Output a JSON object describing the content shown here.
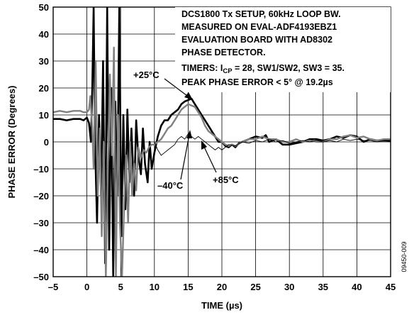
{
  "chart_data": {
    "type": "line",
    "xlabel": "TIME (µs)",
    "ylabel": "PHASE ERROR (Degrees)",
    "xlim": [
      -5,
      45
    ],
    "ylim": [
      -50,
      50
    ],
    "x_ticks": [
      -5,
      0,
      5,
      10,
      15,
      20,
      25,
      30,
      35,
      40,
      45
    ],
    "y_ticks": [
      50,
      40,
      30,
      20,
      10,
      0,
      -10,
      -20,
      -30,
      -40,
      -50
    ],
    "x_tick_labels": [
      "–5",
      "0",
      "5",
      "10",
      "15",
      "20",
      "25",
      "30",
      "35",
      "40",
      "45"
    ],
    "y_tick_labels": [
      "50",
      "40",
      "30",
      "20",
      "10",
      "0",
      "–10",
      "–20",
      "–30",
      "–40",
      "–50"
    ],
    "grid": true,
    "notes": {
      "line1": "DCS1800 Tx SETUP, 60kHz LOOP BW.",
      "line2": "MEASURED ON EVAL-ADF4193EBZ1",
      "line3": "EVALUATION BOARD WITH AD8302",
      "line4": "PHASE DETECTOR.",
      "line5_pre": "TIMERS: I",
      "line5_sub": "CP",
      "line5_post": " = 28, SW1/SW2, SW3 = 35.",
      "line6": "PEAK PHASE ERROR < 5° @ 19.2µs"
    },
    "annotations": {
      "plus25": "+25°C",
      "minus40": "–40°C",
      "plus85": "+85°C"
    },
    "figure_id": "09450-009",
    "series": [
      {
        "label": "+25°C",
        "color": "#000000",
        "width": 2.6,
        "points": [
          [
            -5,
            8.5
          ],
          [
            -4,
            8.5
          ],
          [
            -3,
            8
          ],
          [
            -2,
            8.5
          ],
          [
            -1,
            8.5
          ],
          [
            -0.5,
            8
          ],
          [
            0,
            9
          ],
          [
            0.3,
            7
          ],
          [
            0.6,
            0
          ],
          [
            0.8,
            20
          ],
          [
            1.0,
            50
          ],
          [
            1.2,
            0
          ],
          [
            1.5,
            -30
          ],
          [
            1.8,
            10
          ],
          [
            2.1,
            -20
          ],
          [
            2.4,
            30
          ],
          [
            2.7,
            -45
          ],
          [
            3.0,
            50
          ],
          [
            3.3,
            -40
          ],
          [
            3.6,
            20
          ],
          [
            3.9,
            -50
          ],
          [
            4.2,
            15
          ],
          [
            4.5,
            -20
          ],
          [
            4.8,
            50
          ],
          [
            5.1,
            -35
          ],
          [
            5.4,
            10
          ],
          [
            5.7,
            -25
          ],
          [
            6.0,
            12
          ],
          [
            6.3,
            -15
          ],
          [
            6.6,
            5
          ],
          [
            7.0,
            -20
          ],
          [
            7.3,
            8
          ],
          [
            7.6,
            -5
          ],
          [
            8.0,
            -12
          ],
          [
            8.3,
            5
          ],
          [
            8.6,
            -8
          ],
          [
            9.0,
            -15
          ],
          [
            9.3,
            0
          ],
          [
            9.6,
            -10
          ],
          [
            10,
            -4
          ],
          [
            10.5,
            2
          ],
          [
            11,
            6
          ],
          [
            11.5,
            8
          ],
          [
            12,
            8
          ],
          [
            12.5,
            10
          ],
          [
            13,
            11
          ],
          [
            13.5,
            12
          ],
          [
            14,
            14
          ],
          [
            14.5,
            15
          ],
          [
            15,
            15.5
          ],
          [
            15.5,
            16
          ],
          [
            16,
            14
          ],
          [
            16.5,
            12
          ],
          [
            17,
            10
          ],
          [
            17.5,
            8
          ],
          [
            18,
            6
          ],
          [
            18.5,
            4
          ],
          [
            19,
            2
          ],
          [
            19.5,
            0
          ],
          [
            20,
            0
          ],
          [
            20.5,
            -1.5
          ],
          [
            21,
            -2
          ],
          [
            21.5,
            -1
          ],
          [
            22,
            -2
          ],
          [
            22.5,
            -0.5
          ],
          [
            23,
            0
          ],
          [
            24,
            1
          ],
          [
            25,
            2
          ],
          [
            26,
            1.5
          ],
          [
            26.5,
            2.5
          ],
          [
            27,
            0
          ],
          [
            28,
            1
          ],
          [
            29,
            -1
          ],
          [
            30,
            -1
          ],
          [
            31,
            -0.5
          ],
          [
            32,
            0
          ],
          [
            33,
            1
          ],
          [
            34,
            1
          ],
          [
            35,
            0.5
          ],
          [
            36,
            1
          ],
          [
            37,
            2
          ],
          [
            38,
            1.5
          ],
          [
            39,
            2.5
          ],
          [
            40,
            2
          ],
          [
            41,
            0
          ],
          [
            42,
            1
          ],
          [
            43,
            0.5
          ],
          [
            44,
            0.5
          ],
          [
            45,
            0.5
          ]
        ]
      },
      {
        "label": "–40°C",
        "color": "#808080",
        "width": 2.4,
        "points": [
          [
            -5,
            11
          ],
          [
            -4,
            11.5
          ],
          [
            -3,
            11
          ],
          [
            -2,
            11.5
          ],
          [
            -1,
            11.5
          ],
          [
            -0.5,
            11
          ],
          [
            0,
            11
          ],
          [
            0.3,
            12
          ],
          [
            0.5,
            17
          ],
          [
            0.8,
            5
          ],
          [
            1.0,
            -10
          ],
          [
            1.3,
            30
          ],
          [
            1.6,
            -20
          ],
          [
            1.9,
            5
          ],
          [
            2.2,
            -35
          ],
          [
            2.5,
            0
          ],
          [
            2.8,
            -50
          ],
          [
            3.1,
            -10
          ],
          [
            3.4,
            25
          ],
          [
            3.7,
            -5
          ],
          [
            4.0,
            35
          ],
          [
            4.3,
            -50
          ],
          [
            4.6,
            10
          ],
          [
            4.9,
            -30
          ],
          [
            5.2,
            -50
          ],
          [
            5.5,
            -25
          ],
          [
            5.8,
            -5
          ],
          [
            6.1,
            -30
          ],
          [
            6.4,
            0
          ],
          [
            6.7,
            -20
          ],
          [
            7.0,
            -8
          ],
          [
            7.3,
            -18
          ],
          [
            7.6,
            -2
          ],
          [
            8,
            -6
          ],
          [
            8.4,
            -3
          ],
          [
            8.8,
            -4
          ],
          [
            9.2,
            -2
          ],
          [
            9.6,
            -1
          ],
          [
            10,
            -1
          ],
          [
            10.5,
            0
          ],
          [
            11,
            1
          ],
          [
            11.5,
            3
          ],
          [
            12,
            5
          ],
          [
            12.5,
            6
          ],
          [
            13,
            8
          ],
          [
            13.5,
            10
          ],
          [
            14,
            12
          ],
          [
            14.5,
            13
          ],
          [
            15,
            14
          ],
          [
            15.5,
            13.5
          ],
          [
            16,
            13
          ],
          [
            16.5,
            11
          ],
          [
            17,
            9
          ],
          [
            17.5,
            6
          ],
          [
            18,
            4
          ],
          [
            18.5,
            3
          ],
          [
            19,
            2
          ],
          [
            19.5,
            1
          ],
          [
            20,
            0
          ],
          [
            20.5,
            -1
          ],
          [
            21,
            -1.5
          ],
          [
            21.5,
            -1
          ],
          [
            22,
            -1.5
          ],
          [
            23,
            0
          ],
          [
            24,
            1
          ],
          [
            25,
            1
          ],
          [
            26,
            2
          ],
          [
            27,
            1
          ],
          [
            28,
            1
          ],
          [
            29,
            0
          ],
          [
            30,
            0
          ],
          [
            31,
            1
          ],
          [
            32,
            0
          ],
          [
            33,
            0.5
          ],
          [
            34,
            0
          ],
          [
            35,
            0
          ],
          [
            36,
            1
          ],
          [
            37,
            1
          ],
          [
            38,
            2
          ],
          [
            39,
            2.5
          ],
          [
            40,
            1.5
          ],
          [
            41,
            2
          ],
          [
            42,
            1
          ],
          [
            43,
            0.5
          ],
          [
            44,
            1
          ],
          [
            45,
            1
          ]
        ]
      },
      {
        "label": "+85°C",
        "color": "#000000",
        "width": 0.9,
        "points": [
          [
            10,
            0
          ],
          [
            10.5,
            -3
          ],
          [
            11,
            -5
          ],
          [
            11.5,
            -4
          ],
          [
            12,
            -3
          ],
          [
            12.5,
            -2
          ],
          [
            13,
            -1
          ],
          [
            13.5,
            1
          ],
          [
            14,
            2
          ],
          [
            14.5,
            1
          ],
          [
            15,
            3
          ],
          [
            15.5,
            2
          ],
          [
            16,
            1
          ],
          [
            16.5,
            2
          ],
          [
            17,
            1
          ],
          [
            17.5,
            0
          ],
          [
            18,
            -1
          ],
          [
            18.5,
            -2
          ],
          [
            19,
            -3
          ],
          [
            19.5,
            -2
          ],
          [
            20,
            -3
          ],
          [
            20.5,
            -2
          ],
          [
            21,
            -1
          ],
          [
            22,
            -1.5
          ],
          [
            23,
            0
          ],
          [
            24,
            -0.5
          ],
          [
            25,
            0.5
          ],
          [
            26,
            0
          ],
          [
            27,
            1
          ],
          [
            28,
            0
          ],
          [
            29,
            0.5
          ],
          [
            30,
            -0.5
          ],
          [
            31,
            0
          ],
          [
            32,
            0.5
          ],
          [
            33,
            0
          ],
          [
            34,
            0.5
          ],
          [
            35,
            0
          ],
          [
            36,
            0.5
          ],
          [
            37,
            0
          ],
          [
            38,
            1
          ],
          [
            39,
            0.5
          ],
          [
            40,
            1
          ],
          [
            41,
            0.5
          ],
          [
            42,
            0.5
          ],
          [
            43,
            0
          ],
          [
            44,
            0.5
          ],
          [
            45,
            0
          ]
        ]
      }
    ]
  }
}
